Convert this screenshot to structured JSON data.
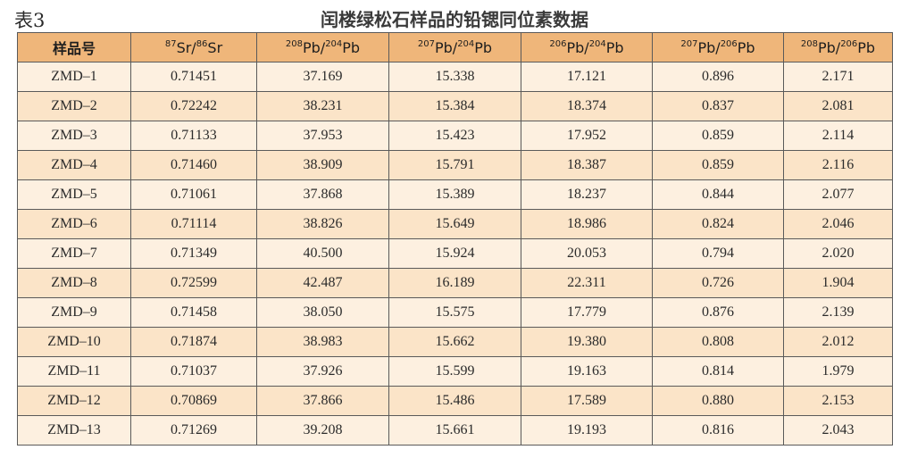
{
  "caption": {
    "label": "表3",
    "title": "闰楼绿松石样品的铅锶同位素数据"
  },
  "table": {
    "headers": [
      {
        "text": "样品号"
      },
      {
        "sup1": "87",
        "base1": "Sr/",
        "sup2": "86",
        "base2": "Sr"
      },
      {
        "sup1": "208",
        "base1": "Pb/",
        "sup2": "204",
        "base2": "Pb"
      },
      {
        "sup1": "207",
        "base1": "Pb/",
        "sup2": "204",
        "base2": "Pb"
      },
      {
        "sup1": "206",
        "base1": "Pb/",
        "sup2": "204",
        "base2": "Pb"
      },
      {
        "sup1": "207",
        "base1": "Pb/",
        "sup2": "206",
        "base2": "Pb"
      },
      {
        "sup1": "208",
        "base1": "Pb/",
        "sup2": "206",
        "base2": "Pb"
      }
    ],
    "rows": [
      [
        "ZMD–1",
        "0.71451",
        "37.169",
        "15.338",
        "17.121",
        "0.896",
        "2.171"
      ],
      [
        "ZMD–2",
        "0.72242",
        "38.231",
        "15.384",
        "18.374",
        "0.837",
        "2.081"
      ],
      [
        "ZMD–3",
        "0.71133",
        "37.953",
        "15.423",
        "17.952",
        "0.859",
        "2.114"
      ],
      [
        "ZMD–4",
        "0.71460",
        "38.909",
        "15.791",
        "18.387",
        "0.859",
        "2.116"
      ],
      [
        "ZMD–5",
        "0.71061",
        "37.868",
        "15.389",
        "18.237",
        "0.844",
        "2.077"
      ],
      [
        "ZMD–6",
        "0.71114",
        "38.826",
        "15.649",
        "18.986",
        "0.824",
        "2.046"
      ],
      [
        "ZMD–7",
        "0.71349",
        "40.500",
        "15.924",
        "20.053",
        "0.794",
        "2.020"
      ],
      [
        "ZMD–8",
        "0.72599",
        "42.487",
        "16.189",
        "22.311",
        "0.726",
        "1.904"
      ],
      [
        "ZMD–9",
        "0.71458",
        "38.050",
        "15.575",
        "17.779",
        "0.876",
        "2.139"
      ],
      [
        "ZMD–10",
        "0.71874",
        "38.983",
        "15.662",
        "19.380",
        "0.808",
        "2.012"
      ],
      [
        "ZMD–11",
        "0.71037",
        "37.926",
        "15.599",
        "19.163",
        "0.814",
        "1.979"
      ],
      [
        "ZMD–12",
        "0.70869",
        "37.866",
        "15.486",
        "17.589",
        "0.880",
        "2.153"
      ],
      [
        "ZMD–13",
        "0.71269",
        "39.208",
        "15.661",
        "19.193",
        "0.816",
        "2.043"
      ]
    ]
  },
  "colors": {
    "header_bg": "#efb67a",
    "row_odd_bg": "#fdf0e0",
    "row_even_bg": "#fbe4c8",
    "border": "#5a5a5a"
  }
}
